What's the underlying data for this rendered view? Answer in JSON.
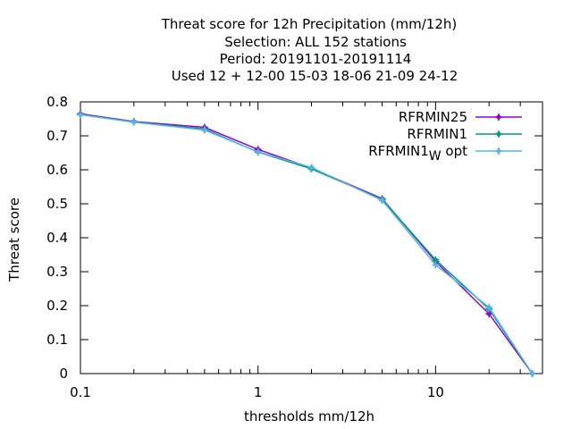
{
  "chart_data": {
    "type": "line",
    "title_lines": [
      "Threat score  for 12h Precipitation (mm/12h)",
      "Selection: ALL    152 stations",
      "Period: 20191101-20191114",
      "Used  12 + 12-00 15-03 18-06 21-09 24-12"
    ],
    "xlabel": "thresholds mm/12h",
    "ylabel": "Threat score",
    "x_scale": "log",
    "xlim": [
      0.1,
      40
    ],
    "ylim": [
      0,
      0.8
    ],
    "x_ticks": [
      {
        "value": 0.1,
        "label": "0.1"
      },
      {
        "value": 1,
        "label": "1"
      },
      {
        "value": 10,
        "label": "10"
      }
    ],
    "y_ticks": [
      {
        "value": 0,
        "label": "0"
      },
      {
        "value": 0.1,
        "label": "0.1"
      },
      {
        "value": 0.2,
        "label": "0.2"
      },
      {
        "value": 0.3,
        "label": "0.3"
      },
      {
        "value": 0.4,
        "label": "0.4"
      },
      {
        "value": 0.5,
        "label": "0.5"
      },
      {
        "value": 0.6,
        "label": "0.6"
      },
      {
        "value": 0.7,
        "label": "0.7"
      },
      {
        "value": 0.8,
        "label": "0.8"
      }
    ],
    "x": [
      0.1,
      0.2,
      0.5,
      1,
      2,
      5,
      10,
      20,
      35
    ],
    "legend_position": "top-right",
    "series": [
      {
        "name": "RFRMIN25",
        "name_sub": "",
        "name_suffix": "",
        "color": "#9400d3",
        "values": [
          0.765,
          0.742,
          0.725,
          0.66,
          0.605,
          0.515,
          0.33,
          0.176,
          0.0
        ]
      },
      {
        "name": "RFRMIN1",
        "name_sub": "",
        "name_suffix": "",
        "color": "#009e73",
        "values": [
          0.763,
          0.741,
          0.72,
          0.652,
          0.603,
          0.513,
          0.335,
          0.19,
          0.0
        ]
      },
      {
        "name": "RFRMIN1",
        "name_sub": "W",
        "name_suffix": " opt",
        "color": "#56b4e9",
        "values": [
          0.762,
          0.74,
          0.717,
          0.653,
          0.607,
          0.51,
          0.32,
          0.195,
          0.0
        ]
      }
    ]
  }
}
